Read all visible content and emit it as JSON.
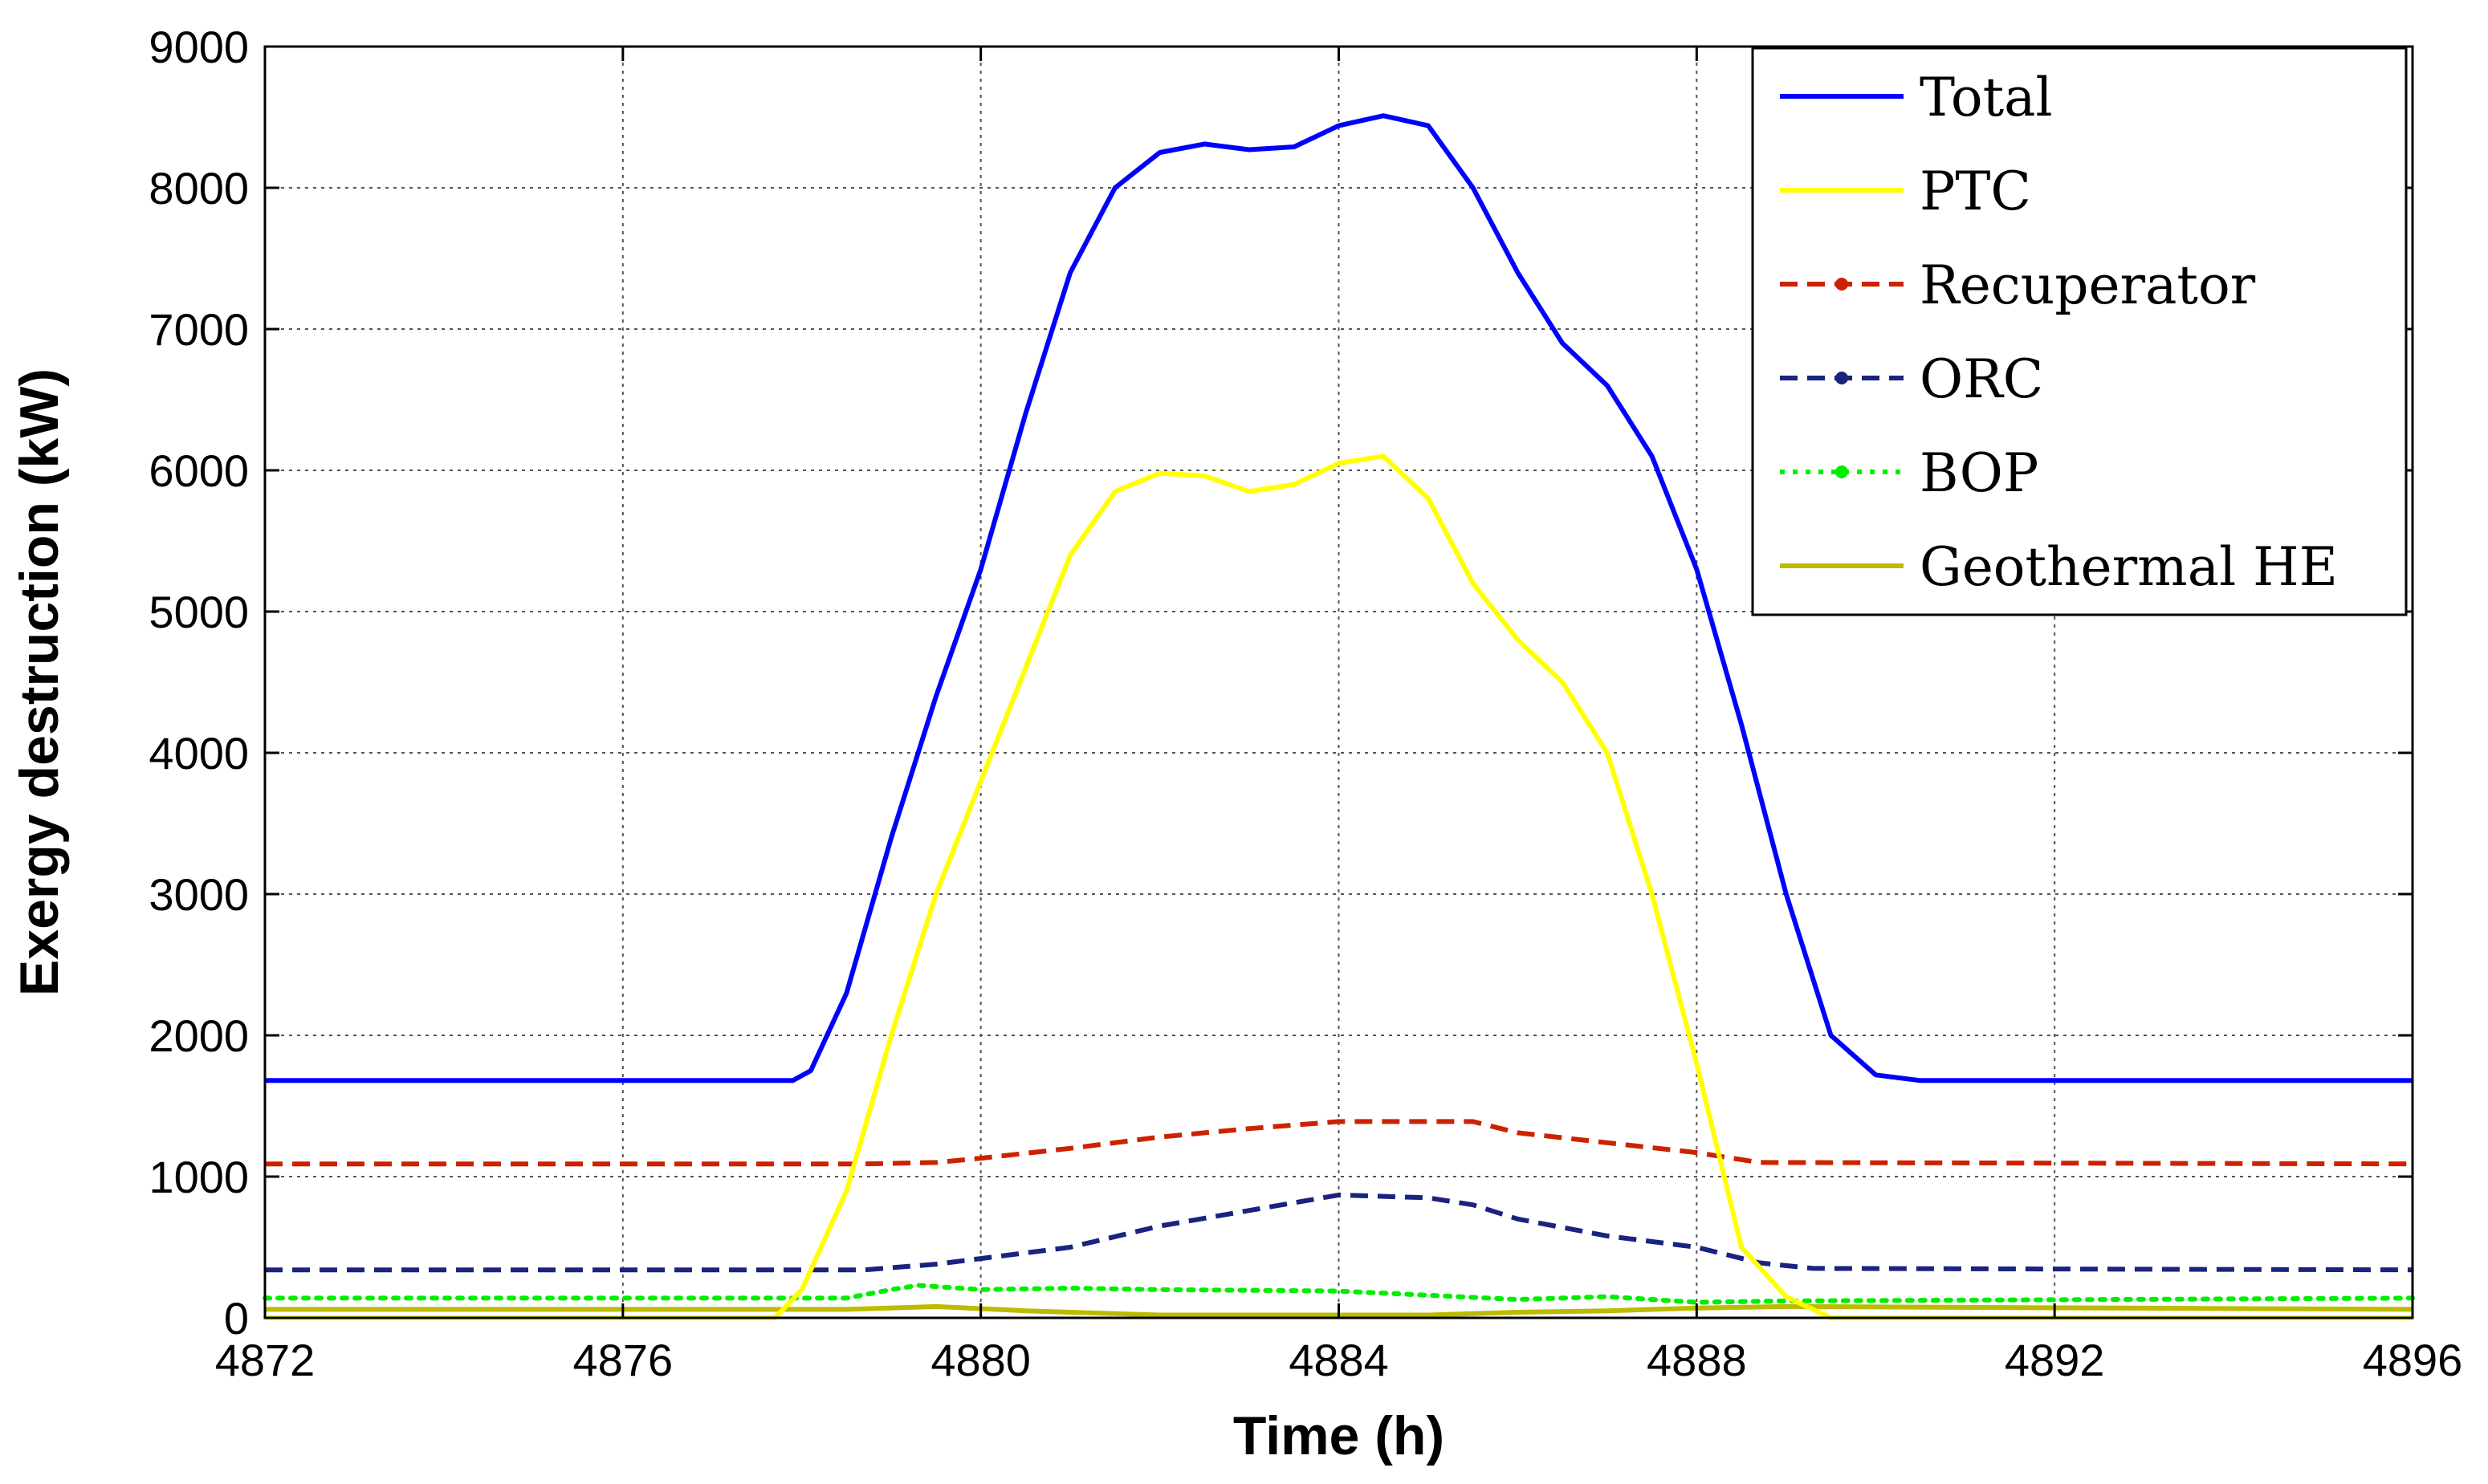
{
  "chart_data": {
    "type": "line",
    "xlabel": "Time (h)",
    "ylabel": "Exergy destruction (kW)",
    "xlim": [
      4872,
      4896
    ],
    "ylim": [
      0,
      9000
    ],
    "xticks": [
      4872,
      4876,
      4880,
      4884,
      4888,
      4892,
      4896
    ],
    "yticks": [
      0,
      1000,
      2000,
      3000,
      4000,
      5000,
      6000,
      7000,
      8000,
      9000
    ],
    "grid": true,
    "legend_position": "top-right",
    "series": [
      {
        "name": "Total",
        "color": "#0000ff",
        "style": "solid",
        "x": [
          4872,
          4877.9,
          4878.1,
          4878.5,
          4879,
          4879.5,
          4880,
          4880.5,
          4881,
          4881.5,
          4882,
          4882.5,
          4883,
          4883.5,
          4884,
          4884.5,
          4885,
          4885.5,
          4886,
          4886.5,
          4887,
          4887.5,
          4888,
          4888.5,
          4889,
          4889.5,
          4890,
          4890.5,
          4896
        ],
        "y": [
          1680,
          1680,
          1750,
          2300,
          3400,
          4400,
          5300,
          6400,
          7400,
          8000,
          8250,
          8310,
          8270,
          8290,
          8440,
          8510,
          8440,
          8000,
          7400,
          6900,
          6600,
          6100,
          5300,
          4200,
          3000,
          2000,
          1720,
          1680,
          1680
        ]
      },
      {
        "name": "PTC",
        "color": "#ffff00",
        "style": "solid",
        "x": [
          4872,
          4877.7,
          4878,
          4878.5,
          4879,
          4879.5,
          4880,
          4880.5,
          4881,
          4881.5,
          4882,
          4882.5,
          4883,
          4883.5,
          4884,
          4884.5,
          4885,
          4885.5,
          4886,
          4886.5,
          4887,
          4887.5,
          4888,
          4888.5,
          4889,
          4889.5,
          4890,
          4890.5,
          4896
        ],
        "y": [
          0,
          0,
          200,
          900,
          2000,
          3000,
          3800,
          4600,
          5400,
          5850,
          5980,
          5960,
          5850,
          5900,
          6050,
          6100,
          5800,
          5200,
          4800,
          4500,
          4000,
          3000,
          1800,
          500,
          150,
          0,
          0,
          0,
          0
        ]
      },
      {
        "name": "Recuperator",
        "color": "#cc2200",
        "style": "dashed",
        "x": [
          4872,
          4878.7,
          4879.5,
          4880,
          4881,
          4882,
          4883,
          4884,
          4885,
          4885.5,
          4886,
          4887,
          4888,
          4888.7,
          4896
        ],
        "y": [
          1090,
          1090,
          1100,
          1130,
          1200,
          1280,
          1340,
          1390,
          1390,
          1390,
          1310,
          1240,
          1170,
          1100,
          1090
        ]
      },
      {
        "name": "ORC",
        "color": "#1a237e",
        "style": "dashed",
        "x": [
          4872,
          4878.7,
          4879.5,
          4880,
          4881,
          4882,
          4883,
          4884,
          4885,
          4885.5,
          4886,
          4887,
          4888,
          4888.7,
          4889.3,
          4896
        ],
        "y": [
          340,
          340,
          380,
          420,
          500,
          650,
          760,
          870,
          850,
          800,
          700,
          580,
          500,
          390,
          350,
          340
        ]
      },
      {
        "name": "BOP",
        "color": "#00ee00",
        "style": "dotted",
        "x": [
          4872,
          4878.5,
          4879,
          4879.3,
          4880,
          4881,
          4882,
          4883,
          4884,
          4885,
          4886,
          4887,
          4888,
          4889,
          4896
        ],
        "y": [
          140,
          140,
          200,
          230,
          200,
          210,
          200,
          195,
          190,
          160,
          130,
          150,
          110,
          120,
          140
        ]
      },
      {
        "name": "Geothermal HE",
        "color": "#bbbb00",
        "style": "solid",
        "x": [
          4872,
          4878.5,
          4879.5,
          4880.5,
          4881,
          4882,
          4883,
          4884,
          4885,
          4886,
          4887,
          4888,
          4889,
          4896
        ],
        "y": [
          60,
          60,
          80,
          50,
          40,
          20,
          20,
          20,
          20,
          40,
          50,
          70,
          80,
          60
        ]
      }
    ]
  }
}
